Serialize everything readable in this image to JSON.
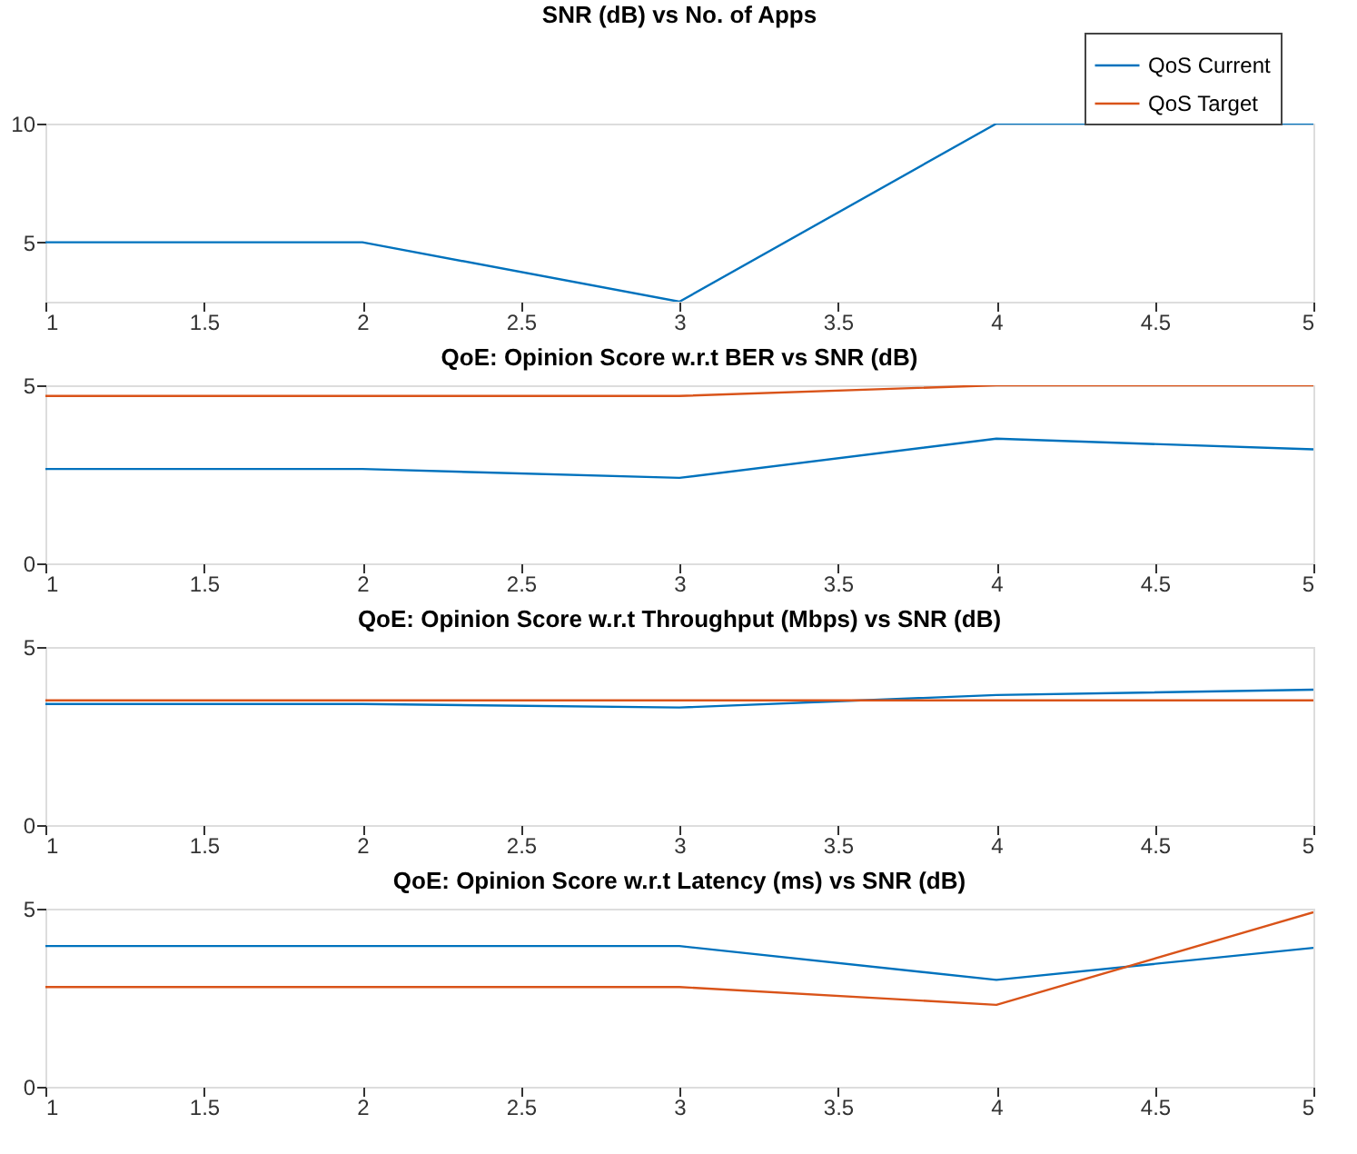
{
  "chart_data": [
    {
      "type": "line",
      "title": "SNR (dB) vs No. of Apps",
      "x": [
        1,
        2,
        3,
        4,
        5
      ],
      "xlim": [
        1,
        5
      ],
      "xticks": [
        1,
        1.5,
        2,
        2.5,
        3,
        3.5,
        4,
        4.5,
        5
      ],
      "ylim": [
        2.5,
        10
      ],
      "yticks": [
        5,
        10
      ],
      "grid": false,
      "legend": "top right",
      "series": [
        {
          "name": "QoS Current",
          "color": "#0072bd",
          "values": [
            5,
            5,
            2.5,
            10,
            10
          ]
        },
        {
          "name": "QoS Target",
          "color": "#d95319",
          "values": [
            null,
            null,
            null,
            null,
            null
          ]
        }
      ]
    },
    {
      "type": "line",
      "title": "QoE: Opinion Score w.r.t BER vs SNR (dB)",
      "x": [
        1,
        2,
        3,
        4,
        5
      ],
      "xlim": [
        1,
        5
      ],
      "xticks": [
        1,
        1.5,
        2,
        2.5,
        3,
        3.5,
        4,
        4.5,
        5
      ],
      "ylim": [
        0,
        5
      ],
      "yticks": [
        0,
        5
      ],
      "grid": false,
      "series": [
        {
          "color": "#0072bd",
          "values": [
            2.65,
            2.65,
            2.4,
            3.5,
            3.2
          ]
        },
        {
          "color": "#d95319",
          "values": [
            4.7,
            4.7,
            4.7,
            5,
            5
          ]
        }
      ]
    },
    {
      "type": "line",
      "title": "QoE: Opinion Score w.r.t Throughput (Mbps) vs SNR (dB)",
      "x": [
        1,
        2,
        3,
        4,
        5
      ],
      "xlim": [
        1,
        5
      ],
      "xticks": [
        1,
        1.5,
        2,
        2.5,
        3,
        3.5,
        4,
        4.5,
        5
      ],
      "ylim": [
        0,
        5
      ],
      "yticks": [
        0,
        5
      ],
      "grid": false,
      "series": [
        {
          "color": "#0072bd",
          "values": [
            3.4,
            3.4,
            3.3,
            3.65,
            3.8
          ]
        },
        {
          "color": "#d95319",
          "values": [
            3.5,
            3.5,
            3.5,
            3.5,
            3.5
          ]
        }
      ]
    },
    {
      "type": "line",
      "title": "QoE: Opinion Score w.r.t Latency (ms) vs SNR (dB)",
      "x": [
        1,
        2,
        3,
        4,
        5
      ],
      "xlim": [
        1,
        5
      ],
      "xticks": [
        1,
        1.5,
        2,
        2.5,
        3,
        3.5,
        4,
        4.5,
        5
      ],
      "ylim": [
        0,
        5
      ],
      "yticks": [
        0,
        5
      ],
      "grid": false,
      "series": [
        {
          "color": "#0072bd",
          "values": [
            3.95,
            3.95,
            3.95,
            3.0,
            3.9
          ]
        },
        {
          "color": "#d95319",
          "values": [
            2.8,
            2.8,
            2.8,
            2.3,
            4.9
          ]
        }
      ]
    }
  ]
}
